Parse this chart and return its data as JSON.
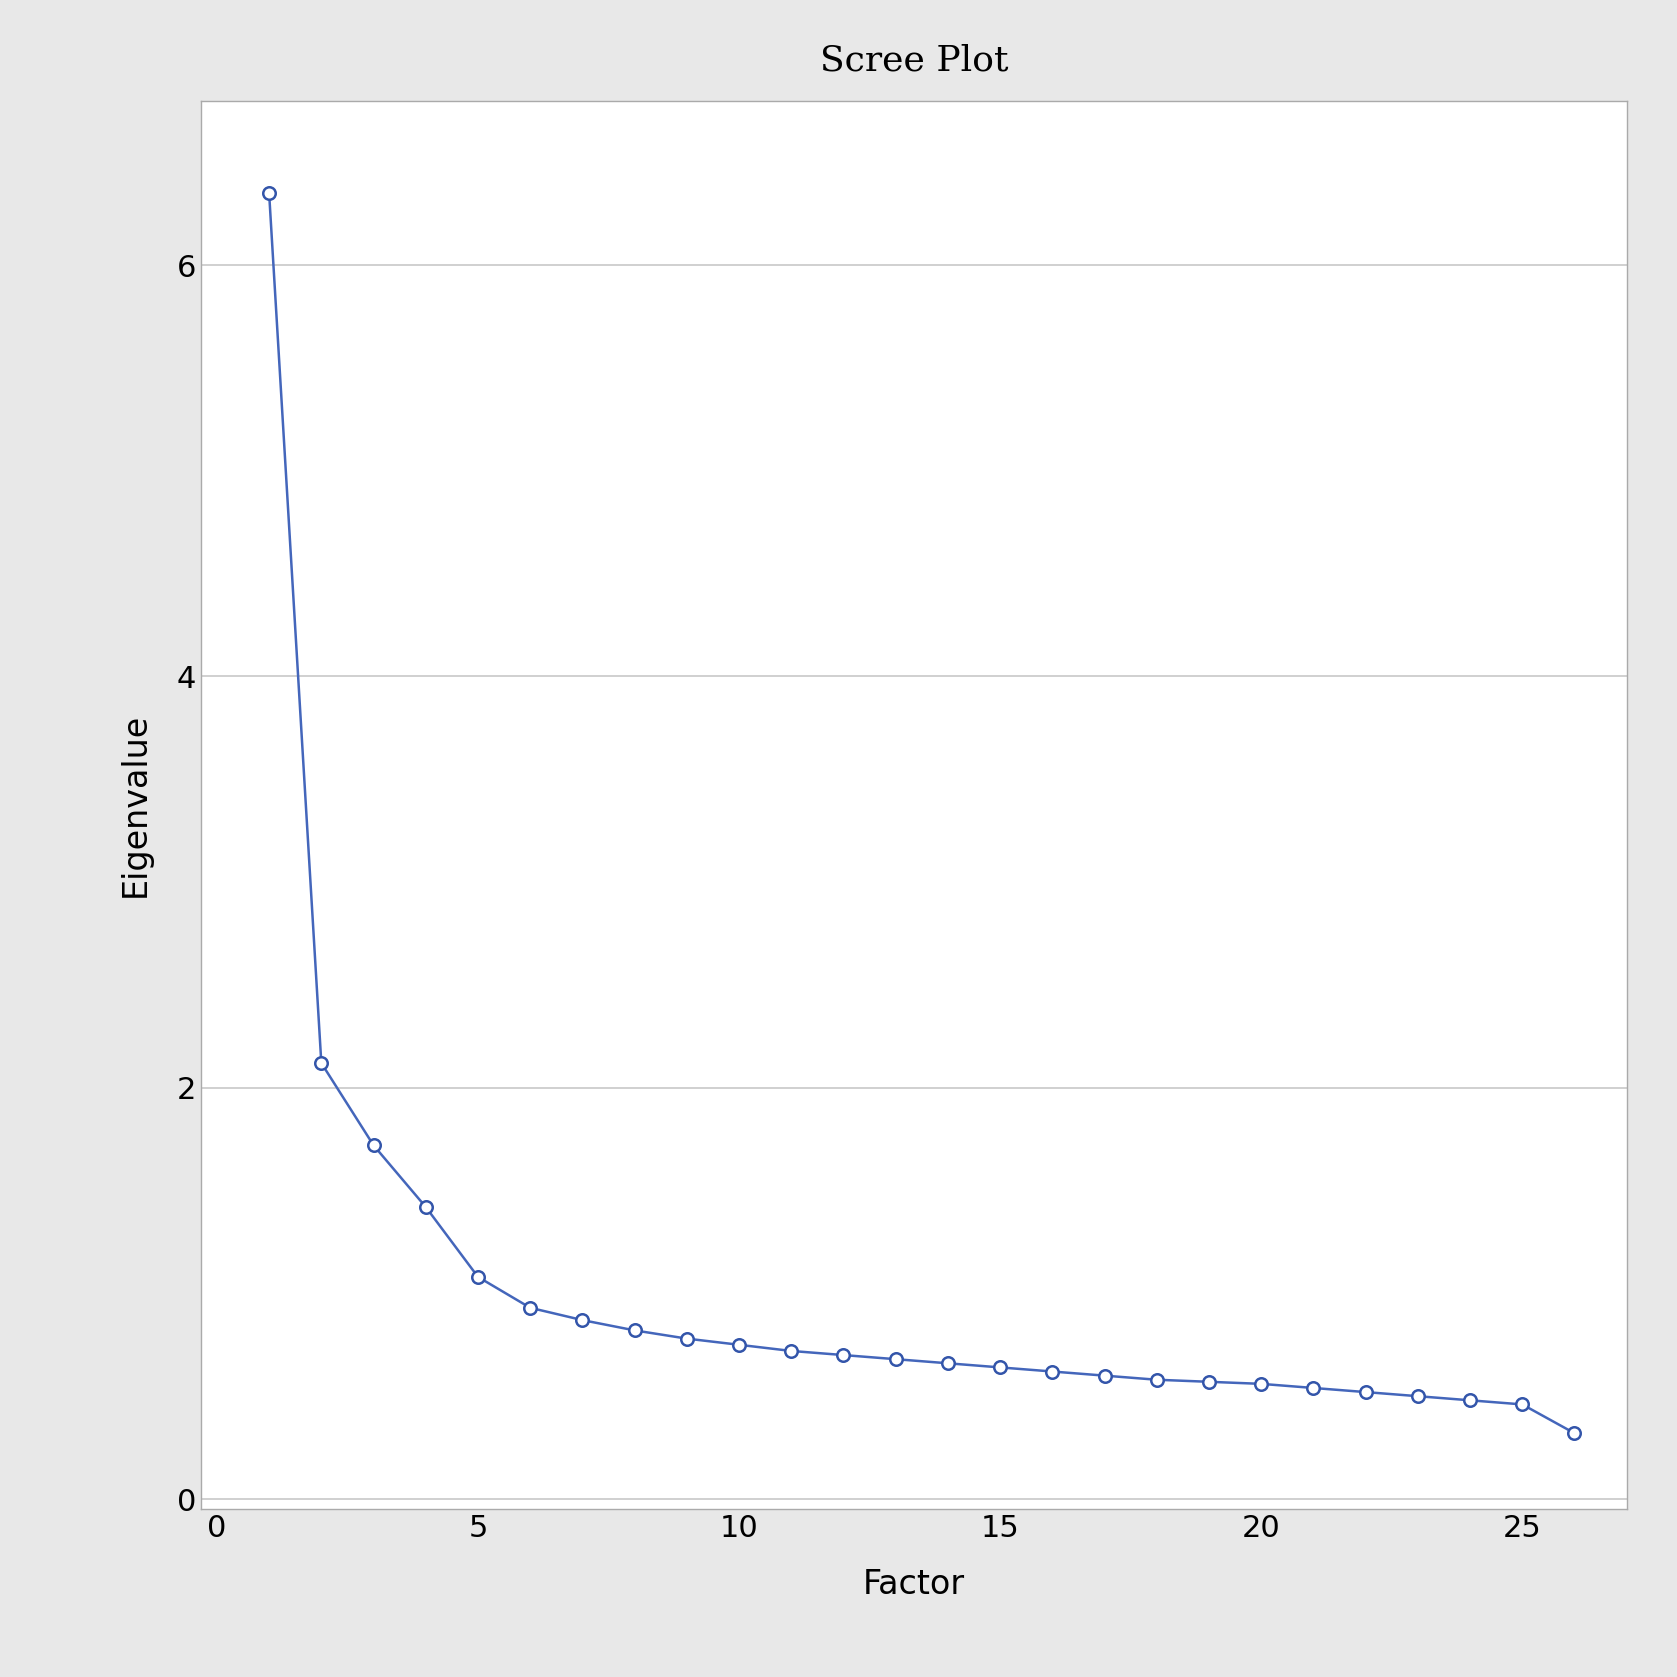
{
  "title": "Scree Plot",
  "xlabel": "Factor",
  "ylabel": "Eigenvalue",
  "x": [
    1,
    2,
    3,
    4,
    5,
    6,
    7,
    8,
    9,
    10,
    11,
    12,
    13,
    14,
    15,
    16,
    17,
    18,
    19,
    20,
    21,
    22,
    23,
    24,
    25,
    26
  ],
  "y": [
    6.35,
    2.12,
    1.72,
    1.42,
    1.08,
    0.93,
    0.87,
    0.82,
    0.78,
    0.75,
    0.72,
    0.7,
    0.68,
    0.66,
    0.64,
    0.62,
    0.6,
    0.58,
    0.57,
    0.56,
    0.54,
    0.52,
    0.5,
    0.48,
    0.46,
    0.32
  ],
  "line_color": "#4466bb",
  "marker": "o",
  "marker_size": 9,
  "marker_facecolor": "white",
  "marker_edgecolor": "#3355aa",
  "marker_edgewidth": 1.8,
  "line_width": 1.8,
  "xlim": [
    -0.3,
    27
  ],
  "ylim": [
    -0.05,
    6.8
  ],
  "xticks": [
    0,
    5,
    10,
    15,
    20,
    25
  ],
  "yticks": [
    0,
    2,
    4,
    6
  ],
  "grid_color": "#c8c8c8",
  "plot_bg_color": "#ffffff",
  "fig_bg_color": "#e8e8e8",
  "title_fontsize": 26,
  "label_fontsize": 24,
  "tick_fontsize": 22
}
